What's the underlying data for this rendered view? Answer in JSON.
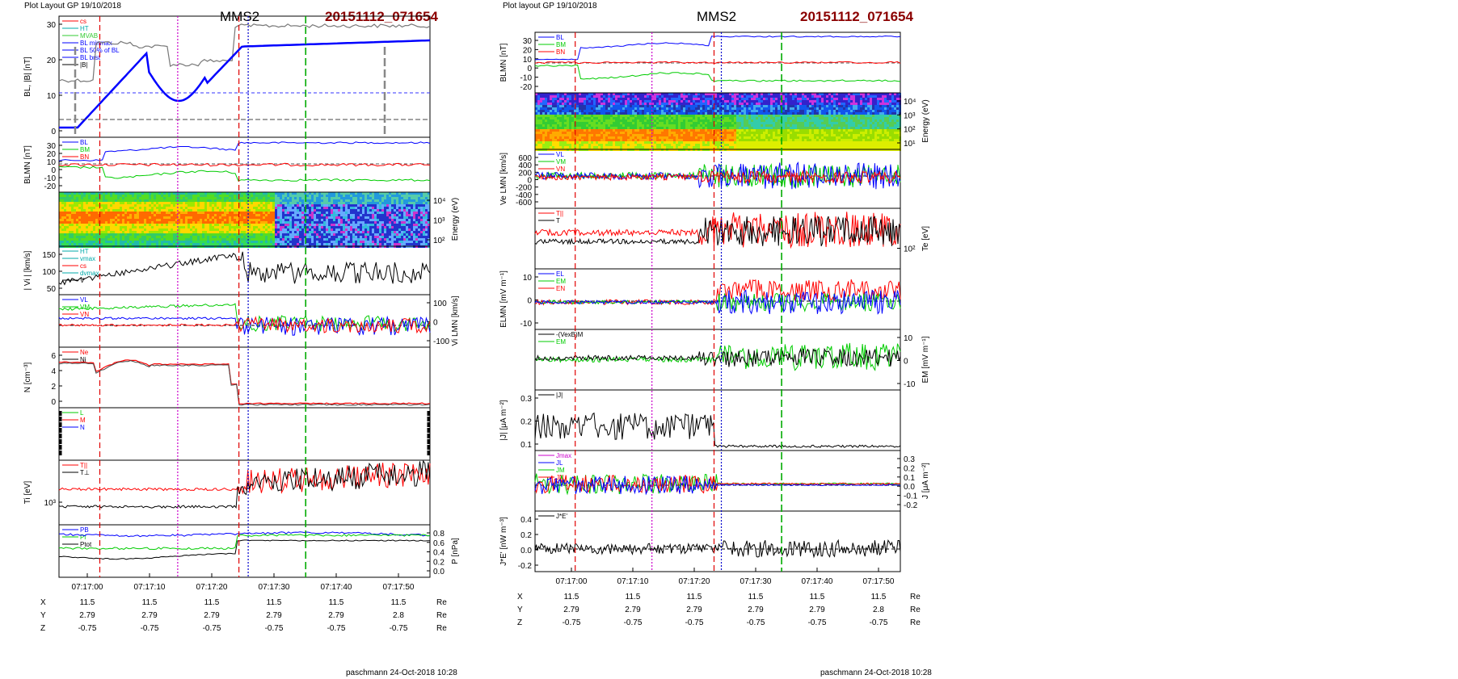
{
  "left": {
    "header_left": "Plot Layout GP 19/10/2018",
    "spacecraft": "MMS2",
    "event_id": "20151112_071654",
    "footer": "paschmann 24-Oct-2018 10:28",
    "time_ticks": [
      "07:17:00",
      "07:17:10",
      "07:17:20",
      "07:17:30",
      "07:17:40",
      "07:17:50"
    ],
    "ephem": {
      "rows": [
        {
          "label": "X",
          "values": [
            "11.5",
            "11.5",
            "11.5",
            "11.5",
            "11.5",
            "11.5"
          ],
          "unit": "Re"
        },
        {
          "label": "Y",
          "values": [
            "2.79",
            "2.79",
            "2.79",
            "2.79",
            "2.79",
            "2.8"
          ],
          "unit": "Re"
        },
        {
          "label": "Z",
          "values": [
            "-0.75",
            "-0.75",
            "-0.75",
            "-0.75",
            "-0.75",
            "-0.75"
          ],
          "unit": "Re"
        }
      ]
    },
    "panels": [
      {
        "ylabel": "BL, |B| [nT]",
        "ylabel_side": "left",
        "ticks": [
          "30",
          "20",
          "10",
          "0"
        ],
        "legend": [
          "cs",
          "HT",
          "MVAB",
          "BL minmax",
          "BL 50% of BL",
          "BL brst",
          "|B|"
        ]
      },
      {
        "ylabel": "BLMN [nT]",
        "ylabel_side": "left",
        "ticks": [
          "30",
          "20",
          "10",
          "0",
          "-10",
          "-20"
        ],
        "legend": [
          "BL",
          "BM",
          "BN"
        ]
      },
      {
        "ylabel": "Energy (eV)",
        "ylabel_side": "right",
        "ticks": [
          "10⁴",
          "10³",
          "10²"
        ],
        "legend": []
      },
      {
        "ylabel": "| Vi | [km/s]",
        "ylabel_side": "left",
        "ticks": [
          "150",
          "100",
          "50"
        ],
        "legend": [
          "HT",
          "vmax",
          "cs",
          "dvmax",
          "V"
        ]
      },
      {
        "ylabel": "Vi LMN [km/s]",
        "ylabel_side": "right",
        "ticks": [
          "100",
          "0",
          "-100"
        ],
        "legend": [
          "VL",
          "VM",
          "VN"
        ]
      },
      {
        "ylabel": "N [cm⁻³]",
        "ylabel_side": "left",
        "ticks": [
          "6",
          "4",
          "2",
          "0"
        ],
        "legend": [
          "Ne",
          "Ni"
        ]
      },
      {
        "ylabel": "",
        "ylabel_side": "left",
        "ticks": [],
        "legend": [
          "L",
          "M",
          "N"
        ]
      },
      {
        "ylabel": "Ti [eV]",
        "ylabel_side": "left",
        "ticks": [
          "10³"
        ],
        "legend": [
          "T||",
          "T⊥"
        ]
      },
      {
        "ylabel": "P [nPa]",
        "ylabel_side": "right",
        "ticks": [
          "0.8",
          "0.6",
          "0.4",
          "0.2",
          "0.0"
        ],
        "legend": [
          "PB",
          "Pi",
          "Ptot"
        ]
      }
    ]
  },
  "right": {
    "header_left": "Plot layout GP 19/10/2018",
    "spacecraft": "MMS2",
    "event_id": "20151112_071654",
    "footer": "paschmann 24-Oct-2018 10:28",
    "time_ticks": [
      "07:17:00",
      "07:17:10",
      "07:17:20",
      "07:17:30",
      "07:17:40",
      "07:17:50"
    ],
    "ephem": {
      "rows": [
        {
          "label": "X",
          "values": [
            "11.5",
            "11.5",
            "11.5",
            "11.5",
            "11.5",
            "11.5"
          ],
          "unit": "Re"
        },
        {
          "label": "Y",
          "values": [
            "2.79",
            "2.79",
            "2.79",
            "2.79",
            "2.79",
            "2.8"
          ],
          "unit": "Re"
        },
        {
          "label": "Z",
          "values": [
            "-0.75",
            "-0.75",
            "-0.75",
            "-0.75",
            "-0.75",
            "-0.75"
          ],
          "unit": "Re"
        }
      ]
    },
    "panels": [
      {
        "ylabel": "BLMN [nT]",
        "ylabel_side": "left",
        "ticks": [
          "30",
          "20",
          "10",
          "0",
          "-10",
          "-20"
        ],
        "legend": [
          "BL",
          "BM",
          "BN"
        ]
      },
      {
        "ylabel": "Energy (eV)",
        "ylabel_side": "right",
        "ticks": [
          "10⁴",
          "10³",
          "10²",
          "10¹"
        ],
        "legend": []
      },
      {
        "ylabel": "Ve LMN [km/s]",
        "ylabel_side": "left",
        "ticks": [
          "600",
          "400",
          "200",
          "0",
          "-200",
          "-400",
          "-600"
        ],
        "legend": [
          "VL",
          "VM",
          "VN"
        ]
      },
      {
        "ylabel": "Te [eV]",
        "ylabel_side": "right",
        "ticks": [
          "10²"
        ],
        "legend": [
          "T||",
          "T"
        ]
      },
      {
        "ylabel": "ELMN [mV m⁻¹]",
        "ylabel_side": "left",
        "ticks": [
          "10",
          "0",
          "-10"
        ],
        "legend": [
          "EL",
          "EM",
          "EN"
        ]
      },
      {
        "ylabel": "EM [mV m⁻¹]",
        "ylabel_side": "right",
        "ticks": [
          "10",
          "0",
          "-10"
        ],
        "legend": [
          "-(VexB)M",
          "EM"
        ]
      },
      {
        "ylabel": "|J| [μA m⁻²]",
        "ylabel_side": "left",
        "ticks": [
          "0.3",
          "0.2",
          "0.1"
        ],
        "legend": [
          "|J|"
        ]
      },
      {
        "ylabel": "J [μA m⁻²]",
        "ylabel_side": "right",
        "ticks": [
          "0.3",
          "0.2",
          "0.1",
          "0.0",
          "-0.1",
          "-0.2"
        ],
        "legend": [
          "Jmax",
          "JL",
          "JM",
          "JN"
        ]
      },
      {
        "ylabel": "J*E' [nW m⁻³]",
        "ylabel_side": "left",
        "ticks": [
          "0.4",
          "0.2",
          "0.0",
          "-0.2"
        ],
        "legend": [
          "J*E'"
        ]
      }
    ]
  },
  "colors": {
    "title_red": "#8b0000",
    "bl_blue": "#0000ff",
    "bm_green": "#00cc00",
    "bn_red": "#ff0000",
    "marker_red": "#e00000",
    "marker_magenta": "#cc00cc",
    "marker_blue": "#0000cc",
    "marker_green": "#00aa00",
    "spec_bg": "#2bd2d2"
  }
}
